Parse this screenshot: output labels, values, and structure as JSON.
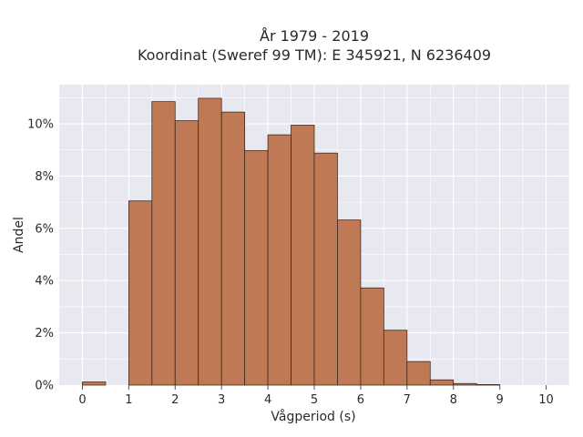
{
  "chart_data": {
    "type": "bar",
    "title_line1": "År 1979 - 2019",
    "title_line2": "Koordinat (Sweref 99 TM): E 345921, N 6236409",
    "xlabel": "Vågperiod (s)",
    "ylabel": "Andel",
    "xlim": [
      -0.5,
      10.5
    ],
    "ylim": [
      0,
      11.5
    ],
    "x_ticks": [
      0,
      1,
      2,
      3,
      4,
      5,
      6,
      7,
      8,
      9,
      10
    ],
    "x_tick_labels": [
      "0",
      "1",
      "2",
      "3",
      "4",
      "5",
      "6",
      "7",
      "8",
      "9",
      "10"
    ],
    "y_ticks": [
      0,
      2,
      4,
      6,
      8,
      10
    ],
    "y_tick_labels": [
      "0%",
      "2%",
      "4%",
      "6%",
      "8%",
      "10%"
    ],
    "bin_width": 0.5,
    "bin_starts": [
      0,
      0.5,
      1,
      1.5,
      2,
      2.5,
      3,
      3.5,
      4,
      4.5,
      5,
      5.5,
      6,
      6.5,
      7,
      7.5,
      8,
      8.5,
      9,
      9.5
    ],
    "values": [
      0.12,
      0,
      7.05,
      10.85,
      10.12,
      10.98,
      10.45,
      8.98,
      9.58,
      9.95,
      8.88,
      6.32,
      3.72,
      2.1,
      0.9,
      0.2,
      0.06,
      0.02,
      0,
      0
    ],
    "bar_color": "#bf7a55",
    "bar_edge_color": "#3d2a1e",
    "plot_background": "#e8e8f1",
    "grid": true,
    "grid_color": "#ffffff"
  }
}
